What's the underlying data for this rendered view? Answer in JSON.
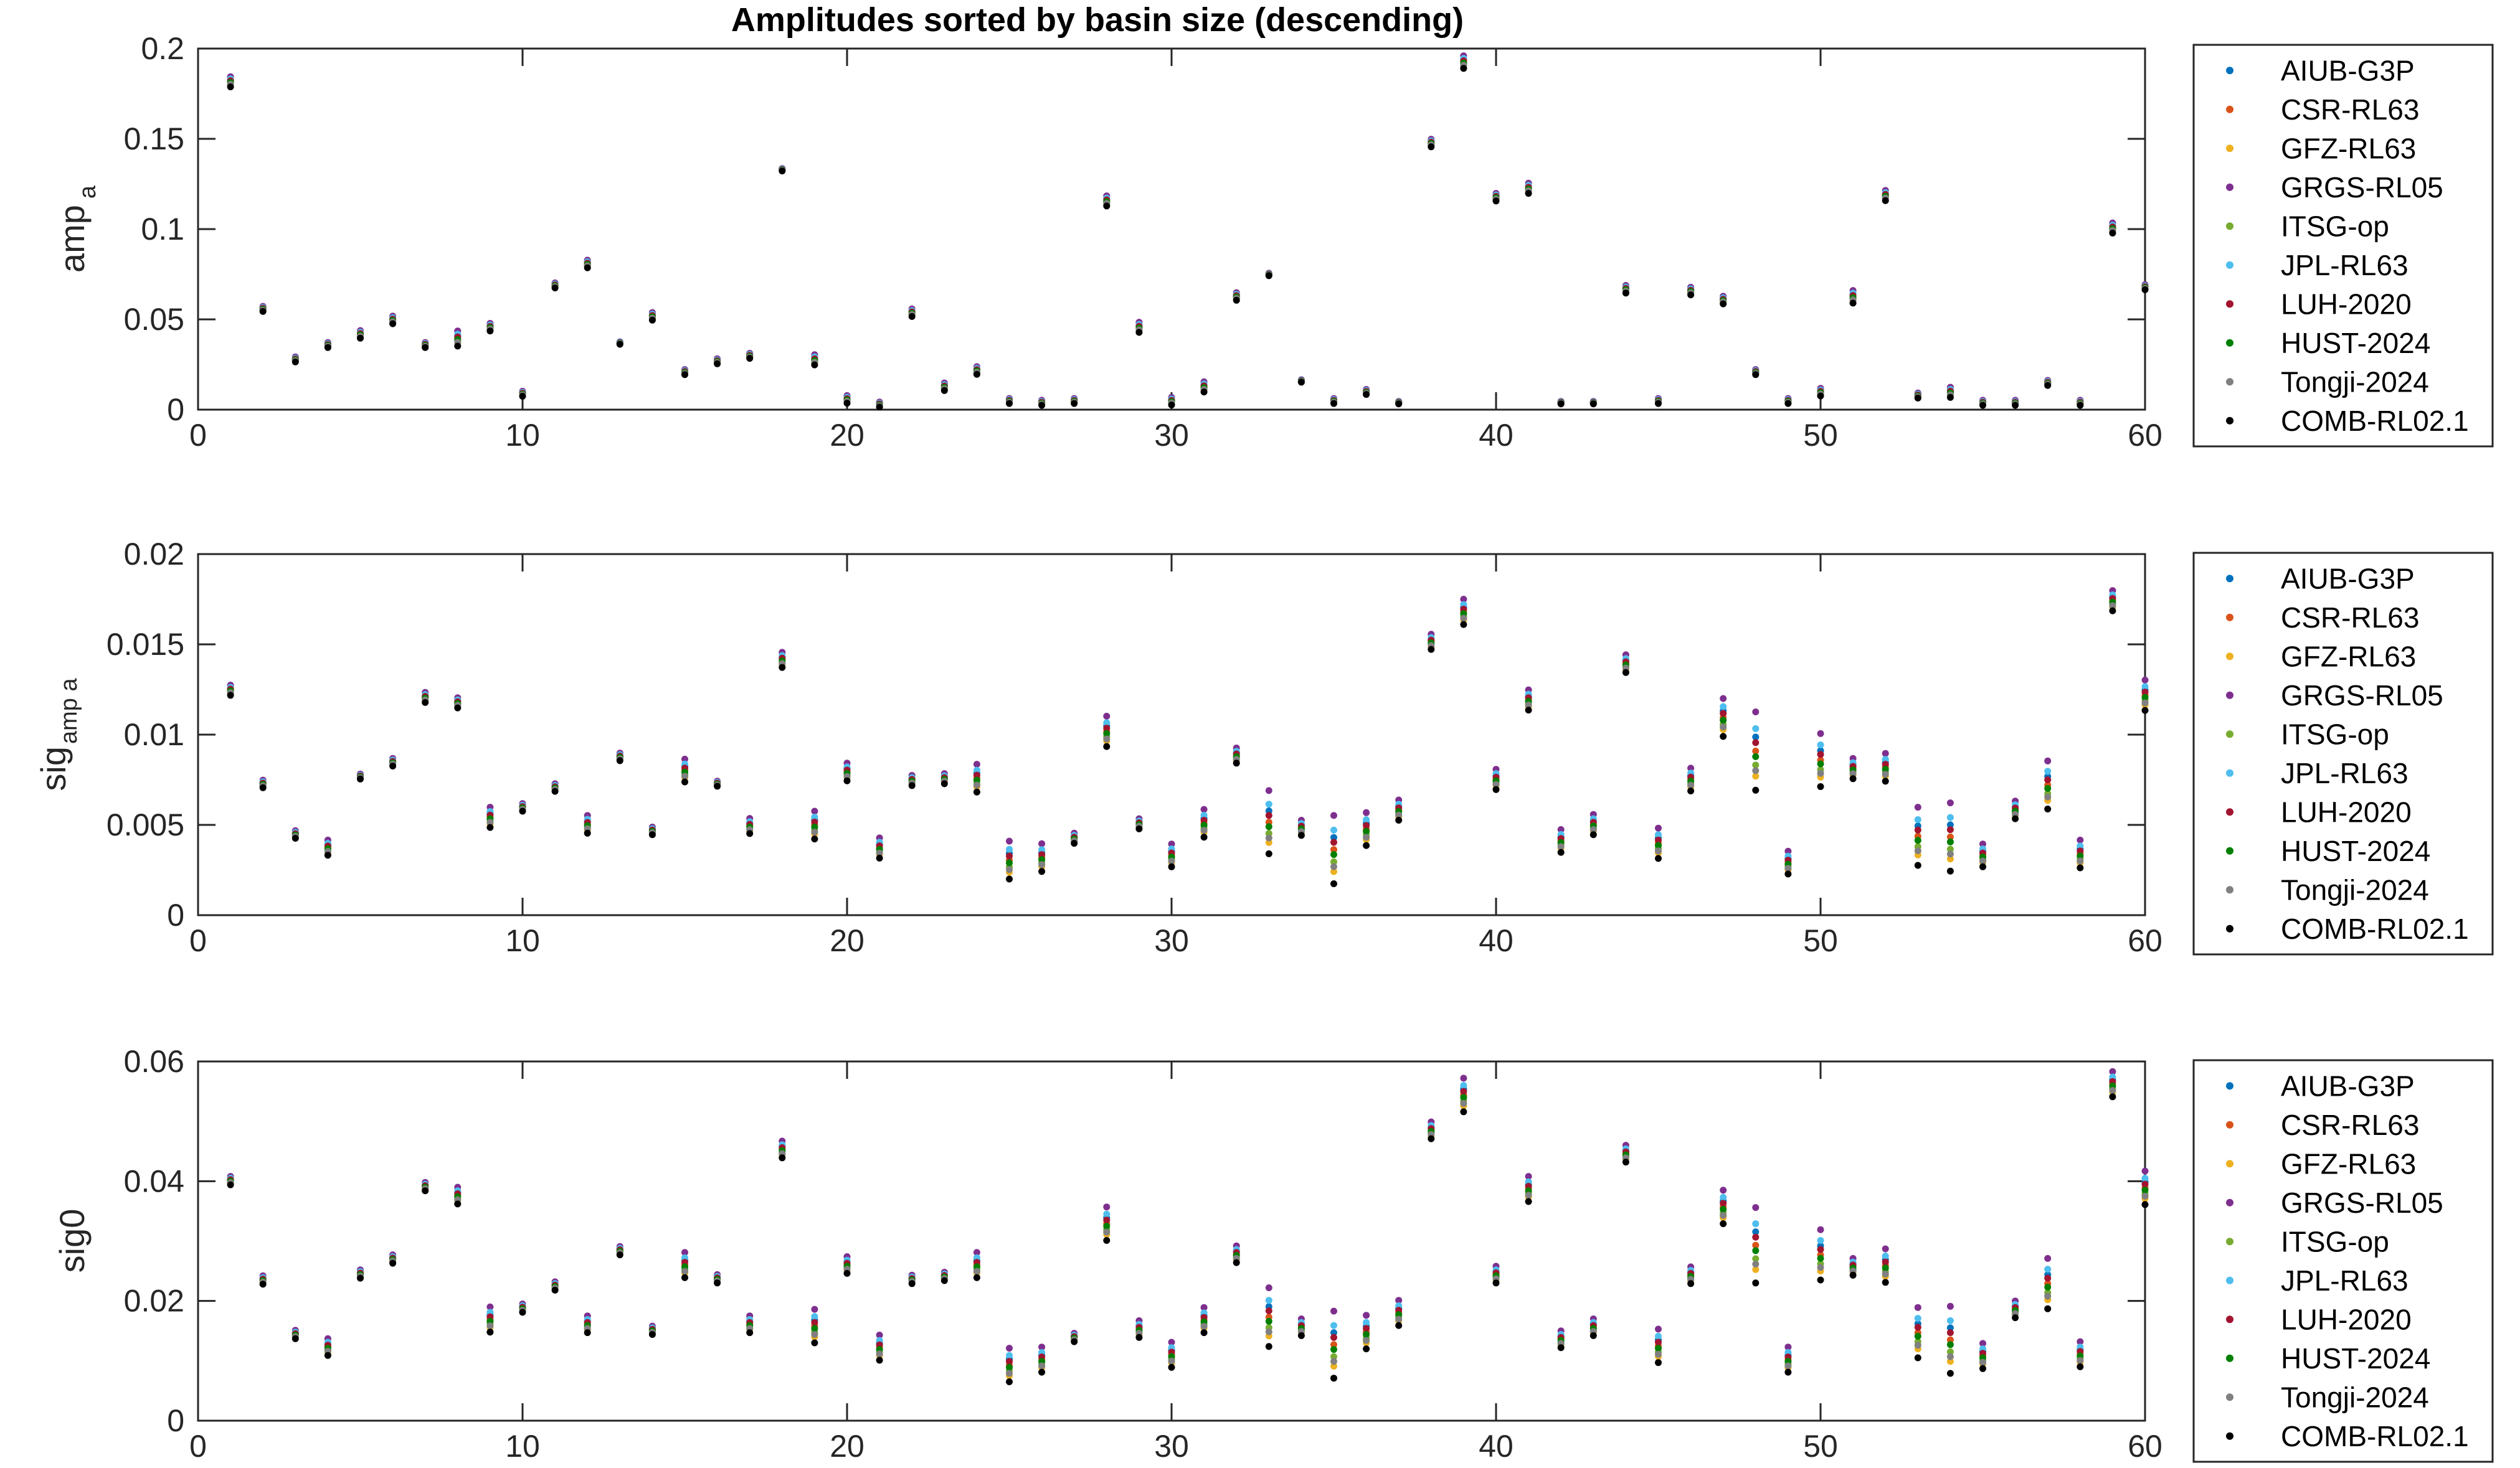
{
  "chart_data": {
    "type": "scatter",
    "title": "Amplitudes sorted by basin size (descending)",
    "series_names": [
      "AIUB-G3P",
      "CSR-RL63",
      "GFZ-RL63",
      "GRGS-RL05",
      "ITSG-op",
      "JPL-RL63",
      "LUH-2020",
      "HUST-2024",
      "Tongji-2024",
      "COMB-RL02.1"
    ],
    "series_colors": [
      "#0072BD",
      "#D95319",
      "#EDB120",
      "#7E2F8E",
      "#77AC30",
      "#4DBEEE",
      "#A2142F",
      "#007F00",
      "#808080",
      "#000000"
    ],
    "legend_location": "outside-right",
    "panels": [
      {
        "ylabel": "amp",
        "ylabel_sub": "a",
        "xlim": [
          0,
          60
        ],
        "ylim": [
          0,
          0.2
        ],
        "xticks": [
          "0",
          "10",
          "20",
          "30",
          "40",
          "50",
          "60"
        ],
        "yticks": [
          "0",
          "0.05",
          "0.1",
          "0.15",
          "0.2"
        ],
        "x": [
          1,
          2,
          3,
          4,
          5,
          6,
          7,
          8,
          9,
          10,
          11,
          12,
          13,
          14,
          15,
          16,
          17,
          18,
          19,
          20,
          21,
          22,
          23,
          24,
          25,
          26,
          27,
          28,
          29,
          30,
          31,
          32,
          33,
          34,
          35,
          36,
          37,
          38,
          39,
          40,
          41,
          42,
          43,
          44,
          45,
          46,
          47,
          48,
          49,
          50,
          51,
          52,
          53,
          54,
          55,
          56,
          57,
          58,
          59,
          60
        ],
        "center": [
          0.182,
          0.056,
          0.028,
          0.036,
          0.042,
          0.05,
          0.036,
          0.04,
          0.046,
          0.009,
          0.069,
          0.081,
          0.037,
          0.052,
          0.021,
          0.027,
          0.03,
          0.133,
          0.028,
          0.006,
          0.003,
          0.054,
          0.013,
          0.022,
          0.005,
          0.004,
          0.005,
          0.116,
          0.046,
          0.005,
          0.013,
          0.063,
          0.075,
          0.016,
          0.005,
          0.01,
          0.004,
          0.148,
          0.193,
          0.118,
          0.123,
          0.004,
          0.004,
          0.067,
          0.005,
          0.066,
          0.061,
          0.021,
          0.005,
          0.01,
          0.063,
          0.119,
          0.008,
          0.01,
          0.004,
          0.004,
          0.015,
          0.004,
          0.101,
          0.068
        ],
        "spread": [
          0.004,
          0.002,
          0.002,
          0.002,
          0.003,
          0.003,
          0.002,
          0.006,
          0.003,
          0.002,
          0.002,
          0.003,
          0.001,
          0.003,
          0.002,
          0.002,
          0.002,
          0.001,
          0.004,
          0.003,
          0.002,
          0.003,
          0.003,
          0.003,
          0.002,
          0.002,
          0.002,
          0.004,
          0.004,
          0.003,
          0.004,
          0.003,
          0.001,
          0.001,
          0.002,
          0.002,
          0.001,
          0.003,
          0.005,
          0.003,
          0.004,
          0.001,
          0.001,
          0.003,
          0.002,
          0.003,
          0.003,
          0.002,
          0.002,
          0.003,
          0.005,
          0.004,
          0.002,
          0.004,
          0.002,
          0.002,
          0.002,
          0.002,
          0.004,
          0.002
        ]
      },
      {
        "ylabel": "sig",
        "ylabel_sub": "amp a",
        "xlim": [
          0,
          60
        ],
        "ylim": [
          0,
          0.02
        ],
        "xticks": [
          "0",
          "10",
          "20",
          "30",
          "40",
          "50",
          "60"
        ],
        "yticks": [
          "0",
          "0.005",
          "0.01",
          "0.015",
          "0.02"
        ],
        "x": [
          1,
          2,
          3,
          4,
          5,
          6,
          7,
          8,
          9,
          10,
          11,
          12,
          13,
          14,
          15,
          16,
          17,
          18,
          19,
          20,
          21,
          22,
          23,
          24,
          25,
          26,
          27,
          28,
          29,
          30,
          31,
          32,
          33,
          34,
          35,
          36,
          37,
          38,
          39,
          40,
          41,
          42,
          43,
          44,
          45,
          46,
          47,
          48,
          49,
          50,
          51,
          52,
          53,
          54,
          55,
          56,
          57,
          58,
          59,
          60
        ],
        "center": [
          0.0125,
          0.0073,
          0.0045,
          0.0038,
          0.0077,
          0.0085,
          0.0121,
          0.0118,
          0.0055,
          0.006,
          0.0071,
          0.0051,
          0.0088,
          0.0047,
          0.0081,
          0.0073,
          0.005,
          0.0142,
          0.0051,
          0.008,
          0.0038,
          0.0075,
          0.0076,
          0.0077,
          0.0032,
          0.0033,
          0.0043,
          0.0103,
          0.0051,
          0.0034,
          0.0052,
          0.0089,
          0.0054,
          0.0049,
          0.0039,
          0.0049,
          0.0059,
          0.0152,
          0.0169,
          0.0076,
          0.012,
          0.0042,
          0.0051,
          0.014,
          0.0041,
          0.0076,
          0.0111,
          0.0094,
          0.003,
          0.0088,
          0.0082,
          0.0083,
          0.0046,
          0.0046,
          0.0034,
          0.0059,
          0.0074,
          0.0035,
          0.0175,
          0.0123
        ],
        "spread": [
          0.0004,
          0.0003,
          0.0003,
          0.0006,
          0.0002,
          0.0003,
          0.0004,
          0.0004,
          0.0008,
          0.0003,
          0.0003,
          0.0007,
          0.0003,
          0.0003,
          0.0009,
          0.0002,
          0.0006,
          0.0006,
          0.0011,
          0.0007,
          0.0008,
          0.0004,
          0.0004,
          0.0011,
          0.0015,
          0.0011,
          0.0004,
          0.0012,
          0.0004,
          0.0009,
          0.0011,
          0.0006,
          0.0025,
          0.0006,
          0.0027,
          0.0013,
          0.0008,
          0.0006,
          0.001,
          0.0008,
          0.0008,
          0.0009,
          0.0008,
          0.0007,
          0.0012,
          0.0009,
          0.0015,
          0.0031,
          0.0009,
          0.0021,
          0.0008,
          0.0011,
          0.0023,
          0.0027,
          0.0009,
          0.0007,
          0.0019,
          0.0011,
          0.0008,
          0.0012
        ]
      },
      {
        "ylabel": "sig0",
        "ylabel_sub": "",
        "xlim": [
          0,
          60
        ],
        "ylim": [
          0,
          0.06
        ],
        "xticks": [
          "0",
          "10",
          "20",
          "30",
          "40",
          "50",
          "60"
        ],
        "yticks": [
          "0",
          "0.02",
          "0.04",
          "0.06"
        ],
        "x": [
          1,
          2,
          3,
          4,
          5,
          6,
          7,
          8,
          9,
          10,
          11,
          12,
          13,
          14,
          15,
          16,
          17,
          18,
          19,
          20,
          21,
          22,
          23,
          24,
          25,
          26,
          27,
          28,
          29,
          30,
          31,
          32,
          33,
          34,
          35,
          36,
          37,
          38,
          39,
          40,
          41,
          42,
          43,
          44,
          45,
          46,
          47,
          48,
          49,
          50,
          51,
          52,
          53,
          54,
          55,
          56,
          57,
          58,
          59,
          60
        ],
        "center": [
          0.0402,
          0.0236,
          0.0145,
          0.0125,
          0.0246,
          0.0271,
          0.0392,
          0.0378,
          0.0172,
          0.0189,
          0.0226,
          0.0163,
          0.0285,
          0.0152,
          0.0263,
          0.0238,
          0.0163,
          0.0455,
          0.0162,
          0.0262,
          0.0125,
          0.0237,
          0.0242,
          0.0263,
          0.0097,
          0.0105,
          0.014,
          0.0333,
          0.0155,
          0.0113,
          0.0171,
          0.028,
          0.018,
          0.0158,
          0.0135,
          0.0152,
          0.0183,
          0.0487,
          0.0548,
          0.0246,
          0.039,
          0.0138,
          0.0158,
          0.0448,
          0.0129,
          0.0245,
          0.0361,
          0.0302,
          0.0105,
          0.0283,
          0.0259,
          0.0263,
          0.0153,
          0.0143,
          0.0111,
          0.0188,
          0.0235,
          0.0114,
          0.0565,
          0.0393
        ],
        "spread": [
          0.001,
          0.001,
          0.001,
          0.002,
          0.001,
          0.001,
          0.001,
          0.002,
          0.003,
          0.001,
          0.001,
          0.002,
          0.001,
          0.001,
          0.003,
          0.001,
          0.002,
          0.002,
          0.004,
          0.002,
          0.003,
          0.001,
          0.001,
          0.003,
          0.004,
          0.003,
          0.001,
          0.004,
          0.002,
          0.003,
          0.003,
          0.002,
          0.007,
          0.002,
          0.008,
          0.004,
          0.003,
          0.002,
          0.004,
          0.002,
          0.003,
          0.002,
          0.002,
          0.002,
          0.004,
          0.002,
          0.004,
          0.009,
          0.003,
          0.006,
          0.002,
          0.004,
          0.006,
          0.008,
          0.003,
          0.002,
          0.006,
          0.003,
          0.003,
          0.004
        ]
      }
    ]
  }
}
